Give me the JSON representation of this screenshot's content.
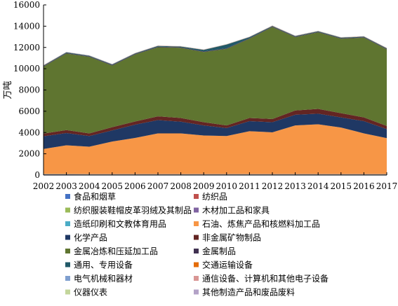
{
  "chart_data": {
    "type": "area",
    "stacked": true,
    "title": "",
    "xlabel": "",
    "ylabel": "万吨",
    "ylim": [
      0,
      16000
    ],
    "yticks": [
      "0",
      "2000",
      "4000",
      "6000",
      "8000",
      "10000",
      "12000",
      "14000",
      "16000"
    ],
    "categories": [
      "2002",
      "2003",
      "2004",
      "2005",
      "2006",
      "2007",
      "2008",
      "2009",
      "2010",
      "2011",
      "2012",
      "2013",
      "2014",
      "2015",
      "2016",
      "2017"
    ],
    "grid": false,
    "legend_position": "bottom",
    "series": [
      {
        "name": "食品和烟草",
        "color": "#4472c4",
        "values": [
          60,
          60,
          50,
          50,
          50,
          50,
          50,
          50,
          50,
          50,
          50,
          50,
          50,
          50,
          50,
          50
        ]
      },
      {
        "name": "纺织品",
        "color": "#c0504d",
        "values": [
          10,
          10,
          10,
          10,
          10,
          10,
          10,
          10,
          10,
          10,
          10,
          10,
          10,
          10,
          10,
          10
        ]
      },
      {
        "name": "纺织服装鞋帽皮革羽绒及其制品",
        "color": "#9bbb59",
        "values": [
          10,
          10,
          10,
          10,
          10,
          10,
          10,
          10,
          10,
          10,
          10,
          10,
          10,
          10,
          10,
          10
        ]
      },
      {
        "name": "木材加工品和家具",
        "color": "#8064a2",
        "values": [
          10,
          10,
          10,
          10,
          10,
          10,
          10,
          10,
          10,
          10,
          10,
          10,
          10,
          10,
          10,
          10
        ]
      },
      {
        "name": "造纸印刷和文教体育用品",
        "color": "#4bacc6",
        "values": [
          10,
          10,
          10,
          10,
          10,
          10,
          10,
          10,
          10,
          10,
          10,
          10,
          10,
          10,
          10,
          10
        ]
      },
      {
        "name": "石油、炼焦产品和核燃料加工品",
        "color": "#f79646",
        "values": [
          2350,
          2700,
          2580,
          3060,
          3400,
          3830,
          3830,
          3630,
          3580,
          4030,
          3930,
          4580,
          4680,
          4380,
          3830,
          3380
        ]
      },
      {
        "name": "化学产品",
        "color": "#1f3864",
        "values": [
          1200,
          1150,
          1000,
          1050,
          1250,
          1250,
          1100,
          950,
          750,
          950,
          950,
          1000,
          1000,
          950,
          1150,
          850
        ]
      },
      {
        "name": "非金属矿物制品",
        "color": "#632523",
        "values": [
          250,
          280,
          250,
          300,
          300,
          350,
          350,
          300,
          250,
          300,
          300,
          400,
          450,
          400,
          350,
          300
        ]
      },
      {
        "name": "金属冶炼和压延加工品",
        "color": "#5f7530",
        "values": [
          6300,
          7200,
          7200,
          5800,
          6300,
          6500,
          6600,
          6600,
          7200,
          7450,
          8650,
          6900,
          7200,
          7000,
          7500,
          7200
        ]
      },
      {
        "name": "金属制品",
        "color": "#403151",
        "values": [
          50,
          50,
          50,
          50,
          50,
          50,
          50,
          50,
          50,
          50,
          50,
          50,
          50,
          50,
          50,
          50
        ]
      },
      {
        "name": "通用、专用设备",
        "color": "#215968",
        "values": [
          50,
          60,
          50,
          50,
          50,
          70,
          60,
          150,
          350,
          100,
          50,
          50,
          50,
          50,
          50,
          50
        ]
      },
      {
        "name": "交通运输设备",
        "color": "#e46c0a",
        "values": [
          10,
          10,
          10,
          10,
          10,
          10,
          10,
          10,
          10,
          10,
          10,
          10,
          10,
          10,
          10,
          10
        ]
      },
      {
        "name": "电气机械和器材",
        "color": "#7f9fcf",
        "values": [
          10,
          10,
          10,
          10,
          10,
          10,
          10,
          10,
          10,
          10,
          10,
          10,
          10,
          10,
          10,
          10
        ]
      },
      {
        "name": "通信设备、计算机和其他电子设备",
        "color": "#d99694",
        "values": [
          10,
          10,
          10,
          10,
          10,
          10,
          10,
          10,
          10,
          10,
          10,
          10,
          10,
          10,
          10,
          10
        ]
      },
      {
        "name": "仪器仪表",
        "color": "#c3d69b",
        "values": [
          10,
          10,
          10,
          10,
          10,
          10,
          10,
          10,
          10,
          10,
          10,
          10,
          10,
          10,
          10,
          10
        ]
      },
      {
        "name": "其他制造产品和废品废料",
        "color": "#b3a2c7",
        "values": [
          10,
          10,
          10,
          10,
          10,
          10,
          10,
          10,
          10,
          10,
          10,
          10,
          10,
          10,
          10,
          10
        ]
      }
    ]
  }
}
